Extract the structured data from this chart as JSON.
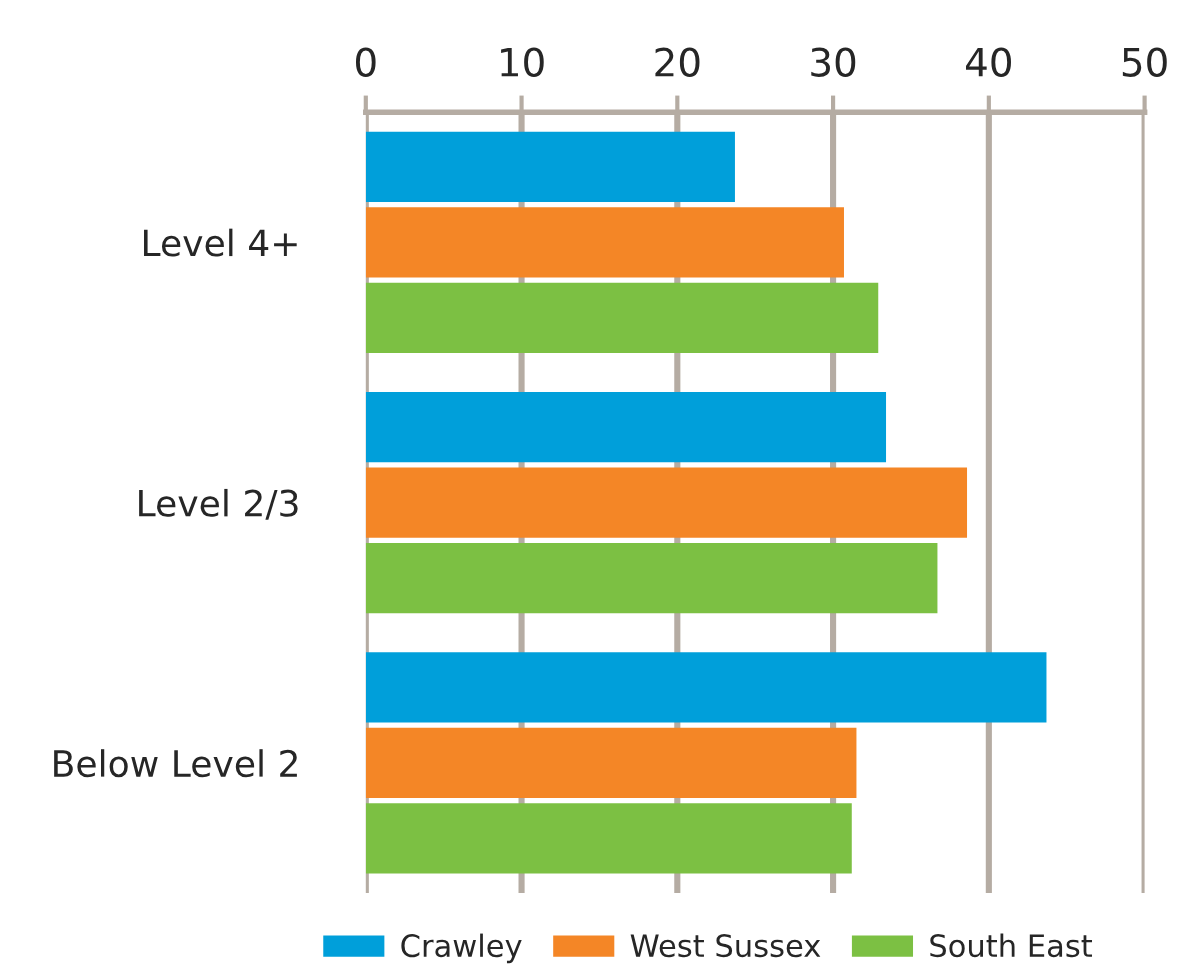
{
  "chart_data": {
    "type": "bar",
    "orientation": "horizontal",
    "categories": [
      "Level 4+",
      "Level 2/3",
      "Below Level 2"
    ],
    "series": [
      {
        "name": "Crawley",
        "color": "#009fda",
        "values": [
          23.7,
          33.4,
          43.7
        ]
      },
      {
        "name": "West Sussex",
        "color": "#f48626",
        "values": [
          30.7,
          38.6,
          31.5
        ]
      },
      {
        "name": "South East",
        "color": "#7cc043",
        "values": [
          32.9,
          36.7,
          31.2
        ]
      }
    ],
    "xlim": [
      0,
      50
    ],
    "xticks": [
      0,
      10,
      20,
      30,
      40,
      50
    ],
    "grid": "x",
    "legend": "bottom"
  }
}
